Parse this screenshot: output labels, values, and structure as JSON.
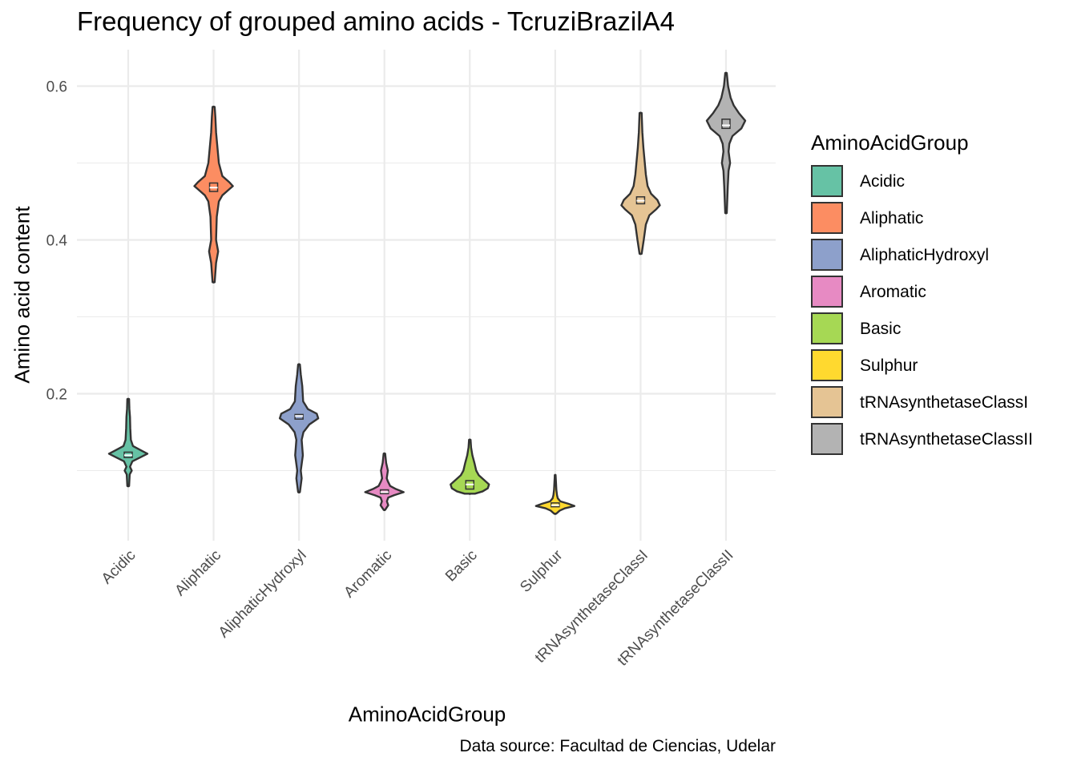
{
  "chart_data": {
    "type": "violin",
    "title": "Frequency of grouped amino acids - TcruziBrazilA4",
    "xlabel": "AminoAcidGroup",
    "ylabel": "Amino acid content",
    "caption": "Data source: Facultad de Ciencias, Udelar",
    "ylim": [
      0.04,
      0.645
    ],
    "yticks": [
      0.2,
      0.4,
      0.6
    ],
    "grid": true,
    "legend_title": "AminoAcidGroup",
    "legend_position": "right",
    "categories": [
      "Acidic",
      "Aliphatic",
      "AliphaticHydroxyl",
      "Aromatic",
      "Basic",
      "Sulphur",
      "tRNAsynthetaseClassI",
      "tRNAsynthetaseClassII"
    ],
    "series": [
      {
        "name": "Acidic",
        "color": "#66C2A5",
        "min": 0.08,
        "max": 0.193,
        "median": 0.12,
        "q1": 0.117,
        "q3": 0.124,
        "profile": [
          [
            0.08,
            0.3
          ],
          [
            0.095,
            0.5
          ],
          [
            0.1,
            1.2
          ],
          [
            0.105,
            0.6
          ],
          [
            0.112,
            1.4
          ],
          [
            0.118,
            4.5
          ],
          [
            0.122,
            6.5
          ],
          [
            0.126,
            4.5
          ],
          [
            0.132,
            1.6
          ],
          [
            0.14,
            0.9
          ],
          [
            0.155,
            0.7
          ],
          [
            0.17,
            0.6
          ],
          [
            0.18,
            0.4
          ],
          [
            0.193,
            0.3
          ]
        ]
      },
      {
        "name": "Aliphatic",
        "color": "#FC8D62",
        "min": 0.345,
        "max": 0.573,
        "median": 0.468,
        "q1": 0.463,
        "q3": 0.474,
        "profile": [
          [
            0.345,
            0.3
          ],
          [
            0.37,
            0.7
          ],
          [
            0.385,
            1.3
          ],
          [
            0.4,
            0.7
          ],
          [
            0.43,
            0.9
          ],
          [
            0.45,
            1.5
          ],
          [
            0.458,
            2.5
          ],
          [
            0.466,
            4.5
          ],
          [
            0.47,
            5.5
          ],
          [
            0.475,
            4.5
          ],
          [
            0.483,
            2.5
          ],
          [
            0.5,
            1.5
          ],
          [
            0.52,
            1.1
          ],
          [
            0.54,
            0.7
          ],
          [
            0.56,
            0.5
          ],
          [
            0.573,
            0.3
          ]
        ]
      },
      {
        "name": "AliphaticHydroxyl",
        "color": "#8DA0CB",
        "min": 0.072,
        "max": 0.238,
        "median": 0.171,
        "q1": 0.167,
        "q3": 0.173,
        "profile": [
          [
            0.072,
            0.3
          ],
          [
            0.09,
            0.9
          ],
          [
            0.1,
            0.6
          ],
          [
            0.12,
            1.3
          ],
          [
            0.14,
            0.9
          ],
          [
            0.15,
            1.5
          ],
          [
            0.16,
            3.5
          ],
          [
            0.168,
            6.5
          ],
          [
            0.174,
            6
          ],
          [
            0.18,
            3
          ],
          [
            0.19,
            1.4
          ],
          [
            0.21,
            1.1
          ],
          [
            0.225,
            0.6
          ],
          [
            0.238,
            0.3
          ]
        ]
      },
      {
        "name": "Aromatic",
        "color": "#E78AC3",
        "min": 0.049,
        "max": 0.122,
        "median": 0.072,
        "q1": 0.07,
        "q3": 0.075,
        "profile": [
          [
            0.049,
            0.4
          ],
          [
            0.055,
            2
          ],
          [
            0.06,
            1.3
          ],
          [
            0.065,
            2
          ],
          [
            0.068,
            5
          ],
          [
            0.072,
            10
          ],
          [
            0.076,
            6
          ],
          [
            0.08,
            3
          ],
          [
            0.086,
            1.8
          ],
          [
            0.09,
            1.2
          ],
          [
            0.1,
            1.8
          ],
          [
            0.11,
            0.9
          ],
          [
            0.122,
            0.4
          ]
        ]
      },
      {
        "name": "Basic",
        "color": "#A6D854",
        "min": 0.07,
        "max": 0.14,
        "median": 0.082,
        "q1": 0.076,
        "q3": 0.087,
        "profile": [
          [
            0.07,
            2
          ],
          [
            0.073,
            5
          ],
          [
            0.077,
            7
          ],
          [
            0.082,
            7.5
          ],
          [
            0.088,
            5.5
          ],
          [
            0.094,
            3.5
          ],
          [
            0.1,
            2.5
          ],
          [
            0.11,
            1.8
          ],
          [
            0.12,
            1
          ],
          [
            0.13,
            0.5
          ],
          [
            0.14,
            0.3
          ]
        ]
      },
      {
        "name": "Sulphur",
        "color": "#FFD92F",
        "min": 0.044,
        "max": 0.094,
        "median": 0.055,
        "q1": 0.053,
        "q3": 0.058,
        "profile": [
          [
            0.044,
            0.8
          ],
          [
            0.048,
            3.5
          ],
          [
            0.051,
            7.5
          ],
          [
            0.054,
            15
          ],
          [
            0.057,
            10
          ],
          [
            0.06,
            4
          ],
          [
            0.064,
            2
          ],
          [
            0.068,
            1.4
          ],
          [
            0.075,
            0.9
          ],
          [
            0.085,
            0.6
          ],
          [
            0.094,
            0.3
          ]
        ]
      },
      {
        "name": "tRNAsynthetaseClassI",
        "color": "#E5C494",
        "min": 0.382,
        "max": 0.565,
        "median": 0.451,
        "q1": 0.447,
        "q3": 0.456,
        "profile": [
          [
            0.382,
            0.3
          ],
          [
            0.4,
            0.9
          ],
          [
            0.42,
            1.5
          ],
          [
            0.432,
            2.5
          ],
          [
            0.44,
            4.5
          ],
          [
            0.445,
            5.5
          ],
          [
            0.452,
            4.8
          ],
          [
            0.46,
            3
          ],
          [
            0.47,
            2
          ],
          [
            0.485,
            1.5
          ],
          [
            0.5,
            1.2
          ],
          [
            0.52,
            0.8
          ],
          [
            0.54,
            0.5
          ],
          [
            0.565,
            0.3
          ]
        ]
      },
      {
        "name": "tRNAsynthetaseClassII",
        "color": "#B3B3B3",
        "min": 0.435,
        "max": 0.617,
        "median": 0.549,
        "q1": 0.545,
        "q3": 0.557,
        "profile": [
          [
            0.435,
            0.3
          ],
          [
            0.47,
            0.7
          ],
          [
            0.49,
            1
          ],
          [
            0.5,
            1.6
          ],
          [
            0.515,
            1
          ],
          [
            0.525,
            1.3
          ],
          [
            0.535,
            2.5
          ],
          [
            0.545,
            6
          ],
          [
            0.555,
            7.5
          ],
          [
            0.565,
            5
          ],
          [
            0.575,
            3
          ],
          [
            0.585,
            1.8
          ],
          [
            0.6,
            0.8
          ],
          [
            0.617,
            0.3
          ]
        ]
      }
    ]
  },
  "legend": {
    "title": "AminoAcidGroup",
    "items": [
      {
        "label": "Acidic",
        "color": "#66C2A5"
      },
      {
        "label": "Aliphatic",
        "color": "#FC8D62"
      },
      {
        "label": "AliphaticHydroxyl",
        "color": "#8DA0CB"
      },
      {
        "label": "Aromatic",
        "color": "#E78AC3"
      },
      {
        "label": "Basic",
        "color": "#A6D854"
      },
      {
        "label": "Sulphur",
        "color": "#FFD92F"
      },
      {
        "label": "tRNAsynthetaseClassI",
        "color": "#E5C494"
      },
      {
        "label": "tRNAsynthetaseClassII",
        "color": "#B3B3B3"
      }
    ]
  }
}
